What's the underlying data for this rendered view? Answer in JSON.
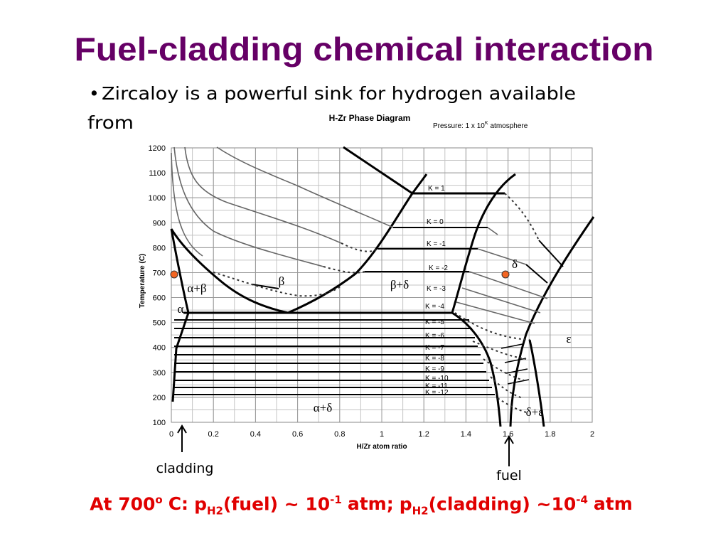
{
  "title": "Fuel-cladding chemical interaction",
  "bullet": {
    "marker": "•",
    "lines": [
      "Zircaloy is a powerful sink for hydrogen available",
      "from"
    ]
  },
  "figure": {
    "title": "H-Zr Phase Diagram",
    "pressure": {
      "prefix": "Pressure: 1 x 10",
      "exponent": "K",
      "suffix": "atmosphere"
    },
    "y_axis_label": "Temperature (C)",
    "x_axis_label": "H/Zr atom ratio",
    "xlim": [
      0,
      2
    ],
    "ylim": [
      100,
      1200
    ],
    "xticks": [
      0,
      0.2,
      0.4,
      0.6,
      0.8,
      1,
      1.2,
      1.4,
      1.6,
      1.8,
      2
    ],
    "yticks": [
      100,
      200,
      300,
      400,
      500,
      600,
      700,
      800,
      900,
      1000,
      1100,
      1200
    ],
    "phase_labels": [
      "α+β",
      "β",
      "β+δ",
      "δ",
      "α",
      "ε",
      "α+δ",
      "δ+ε"
    ],
    "k_labels": [
      "K = 1",
      "K = 0",
      "K = -1",
      "K = -2",
      "K = -3",
      "K = -4",
      "K = -5",
      "K = -6",
      "K = -7",
      "K = -8",
      "K = -9",
      "K = -10",
      "K = -11",
      "K = -12"
    ]
  },
  "annotations": {
    "cladding": "cladding",
    "fuel": "fuel"
  },
  "footer": [
    {
      "text": "At 700"
    },
    {
      "sup": "o"
    },
    {
      "text": "C:"
    },
    {
      "text": "p"
    },
    {
      "sub": "H2"
    },
    {
      "text": "(fuel) ~ 10"
    },
    {
      "sup": "-1"
    },
    {
      "text": "atm;"
    },
    {
      "text": "p"
    },
    {
      "sub": "H2"
    },
    {
      "text": "(cladding) ~10"
    },
    {
      "sup": "-4"
    },
    {
      "text": "atm"
    }
  ]
}
